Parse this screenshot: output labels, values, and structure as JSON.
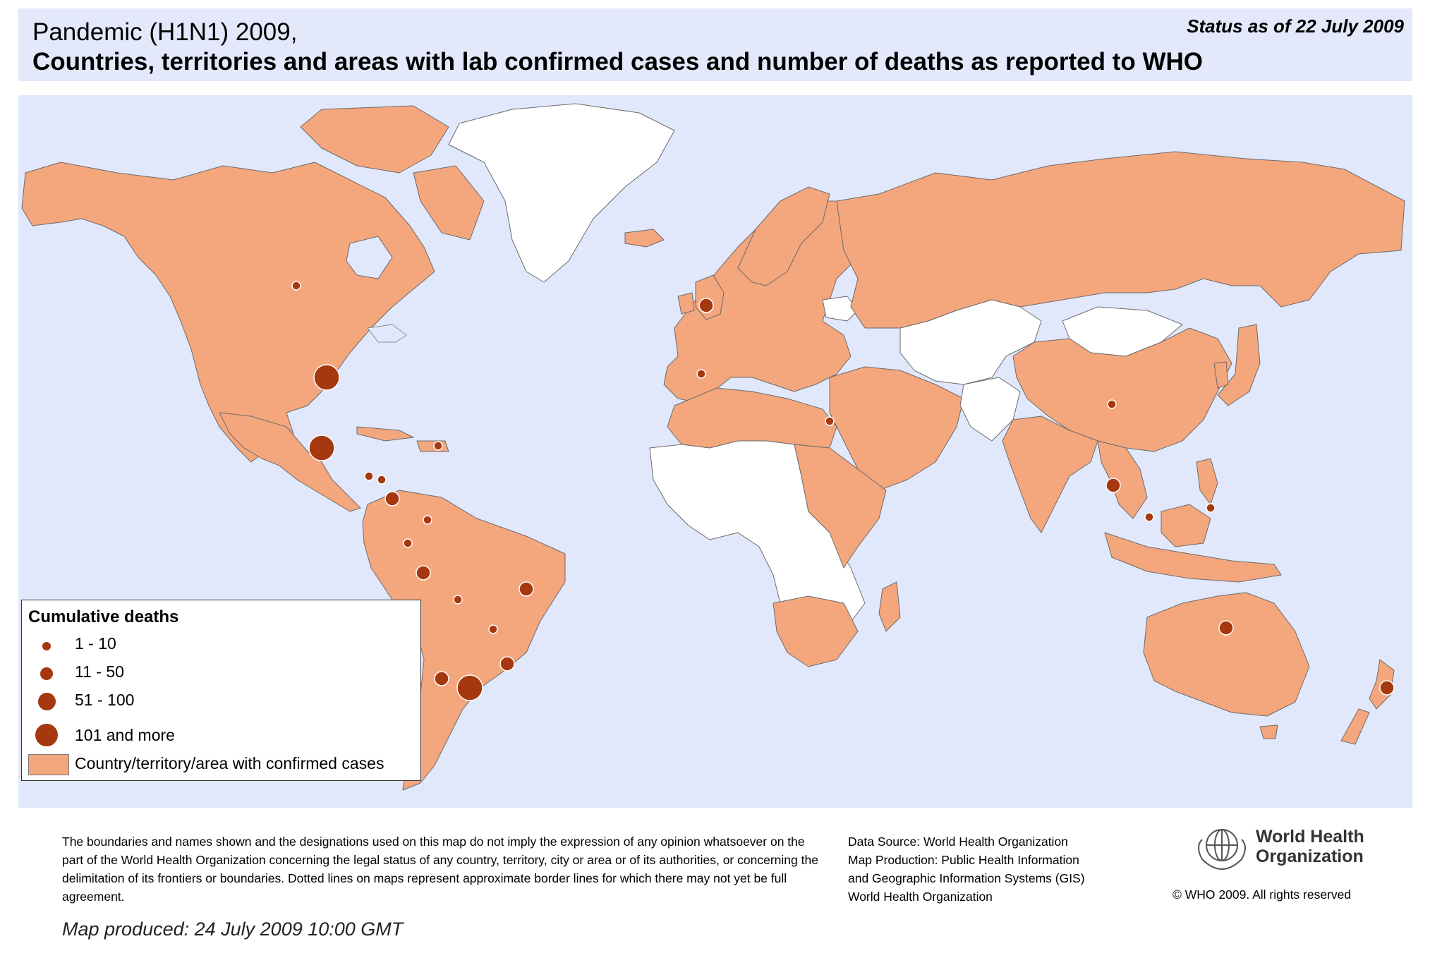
{
  "header": {
    "title_line1": "Pandemic (H1N1) 2009,",
    "title_line2": "Countries, territories and areas with lab confirmed cases and number of deaths as reported to WHO",
    "status": "Status as of 22 July 2009"
  },
  "colors": {
    "ocean": "#e1e8fb",
    "confirmed_country": "#f4a67d",
    "no_cases_country": "#ffffff",
    "not_applicable": "#c8c8c8",
    "death_marker": "#a6380f",
    "border": "#6b6b6b"
  },
  "legend": {
    "title": "Cumulative deaths",
    "classes": [
      {
        "label": "1 - 10",
        "size": "small"
      },
      {
        "label": "11 - 50",
        "size": "medium"
      },
      {
        "label": "51 - 100",
        "size": "large"
      },
      {
        "label": "101 and more",
        "size": "xlarge"
      }
    ],
    "swatch_label": "Country/territory/area with confirmed cases"
  },
  "death_markers": [
    {
      "place": "Canada",
      "class": "small"
    },
    {
      "place": "United States",
      "class": "xlarge"
    },
    {
      "place": "Mexico",
      "class": "xlarge"
    },
    {
      "place": "United Kingdom",
      "class": "medium"
    },
    {
      "place": "Spain",
      "class": "small"
    },
    {
      "place": "Egypt",
      "class": "small"
    },
    {
      "place": "China",
      "class": "small"
    },
    {
      "place": "Thailand",
      "class": "medium"
    },
    {
      "place": "Philippines",
      "class": "small"
    },
    {
      "place": "Malaysia",
      "class": "small"
    },
    {
      "place": "Australia",
      "class": "medium"
    },
    {
      "place": "New Zealand",
      "class": "medium"
    },
    {
      "place": "Guatemala",
      "class": "small"
    },
    {
      "place": "Honduras",
      "class": "small"
    },
    {
      "place": "Costa Rica",
      "class": "medium"
    },
    {
      "place": "Dominican Republic",
      "class": "small"
    },
    {
      "place": "Colombia",
      "class": "small"
    },
    {
      "place": "Ecuador",
      "class": "small"
    },
    {
      "place": "Peru",
      "class": "medium"
    },
    {
      "place": "Brazil",
      "class": "medium"
    },
    {
      "place": "Bolivia",
      "class": "small"
    },
    {
      "place": "Paraguay",
      "class": "small"
    },
    {
      "place": "Uruguay",
      "class": "medium"
    },
    {
      "place": "Chile",
      "class": "medium"
    },
    {
      "place": "Argentina",
      "class": "xlarge"
    }
  ],
  "footer": {
    "disclaimer": "The boundaries and names shown and the designations used on this map do not imply the expression of any opinion whatsoever on the part of the World Health Organization concerning the legal status of any country, territory, city or area or of its authorities, or concerning the delimitation of its frontiers or boundaries.  Dotted lines on maps represent approximate border lines for which there may not yet be full agreement.",
    "data_source": "Data Source: World Health Organization",
    "map_production_1": "Map Production: Public Health Information",
    "map_production_2": "and Geographic Information Systems (GIS)",
    "map_production_3": "World Health Organization",
    "produced": "Map produced: 24 July 2009 10:00 GMT",
    "who_name_1": "World Health",
    "who_name_2": "Organization",
    "copyright": "© WHO 2009. All rights reserved"
  }
}
